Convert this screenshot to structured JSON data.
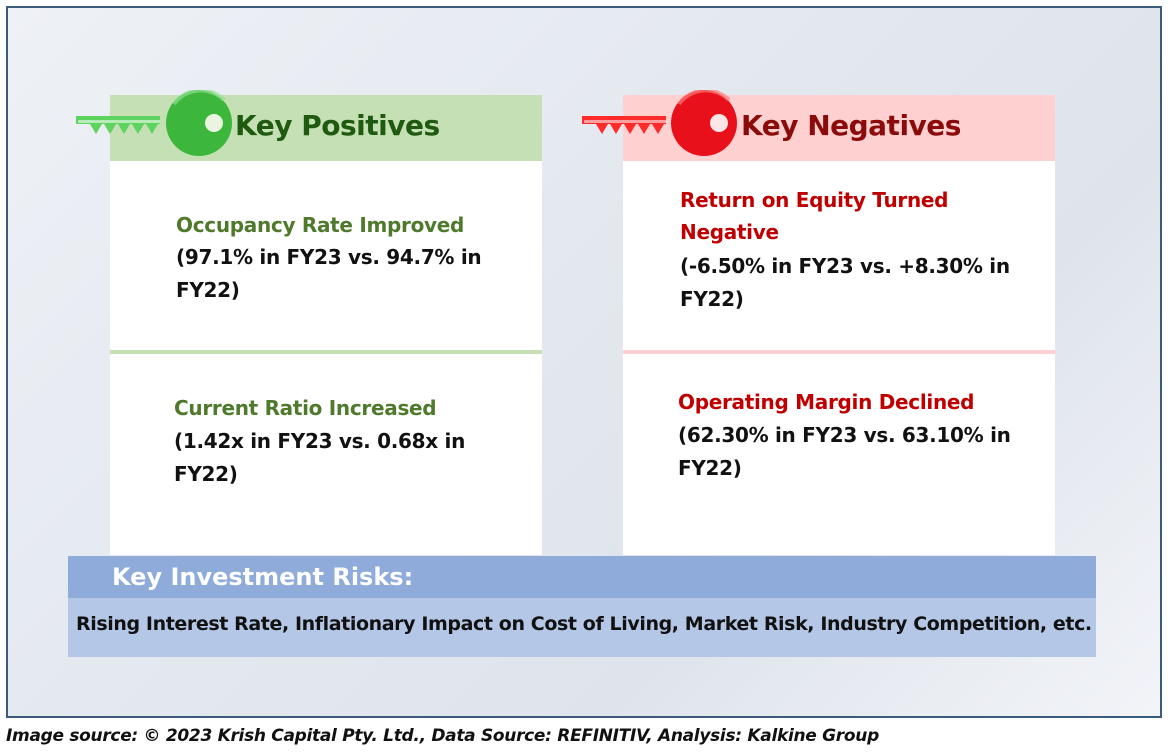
{
  "positives": {
    "title": "Key Positives",
    "items": [
      {
        "title": "Occupancy Rate Improved",
        "line1": "(97.1% in FY23 vs. 94.7% in",
        "line2": "FY22)"
      },
      {
        "title": "Current Ratio Increased",
        "line1": "(1.42x in FY23 vs. 0.68x in",
        "line2": "FY22)"
      }
    ]
  },
  "negatives": {
    "title": "Key Negatives",
    "items": [
      {
        "title_line1": "Return on Equity Turned",
        "title_line2": "Negative",
        "line1": "(-6.50% in FY23 vs. +8.30% in",
        "line2": "FY22)"
      },
      {
        "title": "Operating Margin Declined",
        "line1": "(62.30% in FY23 vs. 63.10% in",
        "line2": "FY22)"
      }
    ]
  },
  "risks": {
    "title": "Key Investment Risks:",
    "text": "Rising Interest Rate, Inflationary Impact on Cost of Living, Market Risk, Industry Competition, etc."
  },
  "footer": "Image source: © 2023 Krish Capital Pty. Ltd., Data Source: REFINITIV, Analysis: Kalkine Group",
  "icons": {
    "positives": "key-icon",
    "negatives": "key-icon"
  },
  "colors": {
    "positive_header": "#c5e0b4",
    "positive_key": "#3cb73c",
    "negative_header": "#ffd0d0",
    "negative_key": "#e8101a",
    "risks_header": "#8eabd9",
    "risks_body": "#b4c7e7"
  }
}
